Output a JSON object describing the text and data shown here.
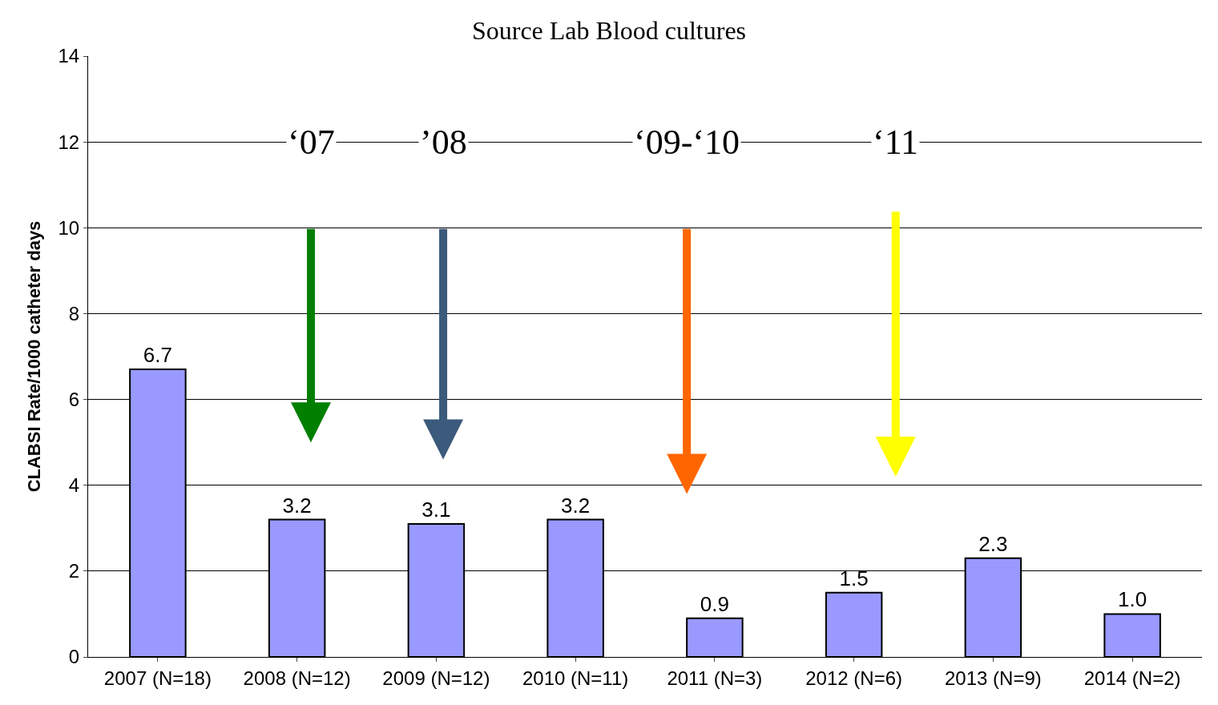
{
  "chart_data": {
    "type": "bar",
    "title": "Source Lab Blood cultures",
    "ylabel": "CLABSI Rate/1000 catheter days",
    "categories": [
      "2007 (N=18)",
      "2008 (N=12)",
      "2009 (N=12)",
      "2010 (N=11)",
      "2011 (N=3)",
      "2012 (N=6)",
      "2013 (N=9)",
      "2014 (N=2)"
    ],
    "values": [
      6.7,
      3.2,
      3.1,
      3.2,
      0.9,
      1.5,
      2.3,
      1.0
    ],
    "value_labels": [
      "6.7",
      "3.2",
      "3.1",
      "3.2",
      "0.9",
      "1.5",
      "2.3",
      "1.0"
    ],
    "color": "#9999ff",
    "ylim": [
      0,
      14
    ],
    "yticks": [
      0,
      2,
      4,
      6,
      8,
      10,
      12,
      14
    ],
    "grid": "y",
    "annotations": [
      "‘07",
      "’08",
      "‘09-‘10",
      "‘11"
    ]
  }
}
